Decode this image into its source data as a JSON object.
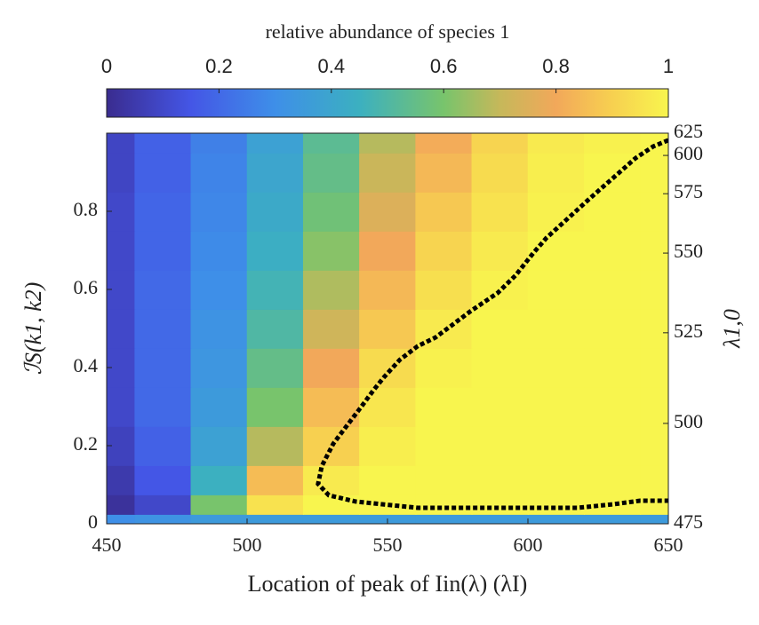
{
  "chart_data": {
    "type": "heatmap",
    "colorbar_title": "relative abundance of species 1",
    "clim": [
      0,
      1
    ],
    "cticks": [
      0,
      0.2,
      0.4,
      0.6,
      0.8,
      1
    ],
    "x_label": "Location of peak of Iin(λ) (λI)",
    "y_label": "ℐS(k1, k2)",
    "y2_label": "λ1,0",
    "x": [
      450,
      470,
      490,
      510,
      530,
      550,
      570,
      590,
      610,
      630,
      650
    ],
    "y": [
      0,
      0.05,
      0.1,
      0.2,
      0.3,
      0.4,
      0.5,
      0.6,
      0.7,
      0.8,
      0.9,
      1.0
    ],
    "z": [
      [
        0.3,
        0.32,
        0.35,
        0.35,
        0.35,
        0.35,
        0.35,
        0.35,
        0.35,
        0.35,
        0.35
      ],
      [
        0.02,
        0.1,
        0.6,
        0.95,
        1,
        1,
        1,
        1,
        1,
        1,
        1
      ],
      [
        0.05,
        0.15,
        0.45,
        0.85,
        0.97,
        1,
        1,
        1,
        1,
        1,
        1
      ],
      [
        0.08,
        0.18,
        0.38,
        0.68,
        0.9,
        0.98,
        1,
        1,
        1,
        1,
        1
      ],
      [
        0.1,
        0.2,
        0.35,
        0.6,
        0.85,
        0.96,
        1,
        1,
        1,
        1,
        1
      ],
      [
        0.1,
        0.2,
        0.33,
        0.55,
        0.8,
        0.93,
        0.99,
        1,
        1,
        1,
        1
      ],
      [
        0.1,
        0.2,
        0.32,
        0.5,
        0.72,
        0.88,
        0.97,
        1,
        1,
        1,
        1
      ],
      [
        0.1,
        0.2,
        0.3,
        0.47,
        0.67,
        0.84,
        0.94,
        0.99,
        1,
        1,
        1
      ],
      [
        0.1,
        0.19,
        0.29,
        0.44,
        0.62,
        0.8,
        0.91,
        0.97,
        1,
        1,
        1
      ],
      [
        0.1,
        0.19,
        0.28,
        0.42,
        0.58,
        0.75,
        0.88,
        0.95,
        0.99,
        1,
        1
      ],
      [
        0.09,
        0.18,
        0.27,
        0.4,
        0.55,
        0.71,
        0.84,
        0.93,
        0.98,
        1,
        1
      ],
      [
        0.09,
        0.18,
        0.26,
        0.38,
        0.53,
        0.68,
        0.81,
        0.91,
        0.97,
        0.99,
        1
      ]
    ],
    "contour": {
      "x": [
        650,
        644.6,
        638.3,
        630.4,
        622.5,
        614.6,
        606.6,
        601.9,
        595.6,
        589.2,
        579.7,
        573.4,
        567.1,
        560.8,
        554.4,
        548.7,
        544.9,
        540.2,
        535.4,
        530.7,
        526.6,
        525.3,
        529.1,
        538.6,
        548.1,
        560.8,
        576.6,
        601.9,
        617.7,
        630.4,
        639.9,
        650
      ],
      "y": [
        0.982,
        0.966,
        0.936,
        0.886,
        0.836,
        0.784,
        0.732,
        0.693,
        0.636,
        0.591,
        0.545,
        0.511,
        0.477,
        0.455,
        0.42,
        0.375,
        0.341,
        0.295,
        0.25,
        0.205,
        0.148,
        0.102,
        0.073,
        0.057,
        0.05,
        0.041,
        0.041,
        0.041,
        0.041,
        0.05,
        0.059,
        0.059
      ],
      "color": "#000000"
    },
    "xlim": [
      450,
      650
    ],
    "xticks": [
      450,
      500,
      550,
      600,
      650
    ],
    "ylim": [
      0,
      1
    ],
    "yticks": [
      0,
      0.2,
      0.4,
      0.6,
      0.8
    ],
    "y2ticks": [
      475,
      500,
      525,
      550,
      575,
      600,
      625
    ],
    "y2_positions": [
      0,
      0.257,
      0.489,
      0.693,
      0.845,
      0.943,
      1.0
    ]
  }
}
